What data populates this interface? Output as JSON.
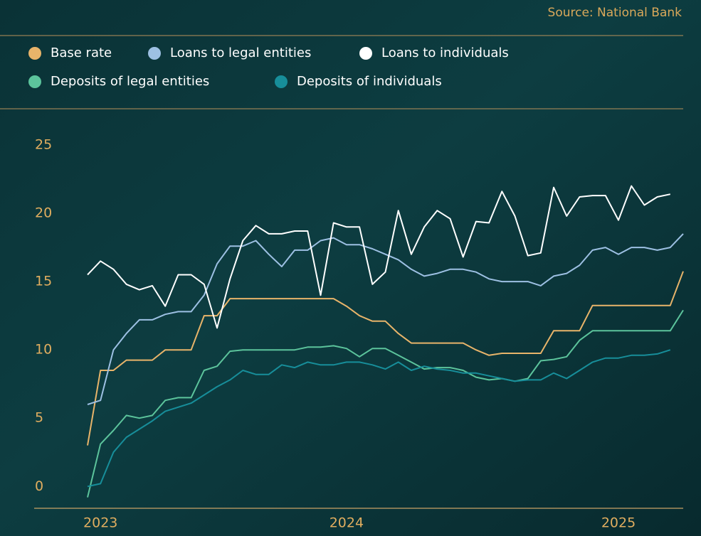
{
  "chart_data": {
    "type": "line",
    "source": "Source: National Bank",
    "categories": [
      null,
      "2023",
      null,
      null,
      null,
      null,
      null,
      null,
      null,
      null,
      null,
      null,
      null,
      null,
      null,
      null,
      null,
      null,
      null,
      null,
      "2024",
      null,
      null,
      null,
      null,
      null,
      null,
      null,
      null,
      null,
      null,
      null,
      null,
      null,
      null,
      null,
      null,
      null,
      null,
      null,
      null,
      "2025",
      null,
      null,
      null,
      null,
      null
    ],
    "ylim": [
      -1.6,
      25
    ],
    "yticks": [
      0,
      5,
      10,
      15,
      20,
      25
    ],
    "series": [
      {
        "name": "Base rate",
        "color": "#e8b46a",
        "values": [
          3.0,
          8.5,
          8.5,
          9.25,
          9.25,
          9.25,
          10.0,
          10.0,
          10.0,
          12.5,
          12.5,
          13.75,
          13.75,
          13.75,
          13.75,
          13.75,
          13.75,
          13.75,
          13.75,
          13.75,
          13.2,
          12.5,
          12.1,
          12.1,
          11.2,
          10.5,
          10.5,
          10.5,
          10.5,
          10.5,
          10.0,
          9.6,
          9.75,
          9.75,
          9.75,
          9.75,
          11.4,
          11.4,
          11.4,
          13.25,
          13.25,
          13.25,
          13.25,
          13.25,
          13.25,
          13.25,
          15.75
        ]
      },
      {
        "name": "Loans to legal entities",
        "color": "#9dc0e3",
        "values": [
          6.0,
          6.3,
          10.0,
          11.2,
          12.2,
          12.2,
          12.6,
          12.8,
          12.8,
          14.0,
          16.3,
          17.6,
          17.6,
          18.0,
          17.0,
          16.1,
          17.3,
          17.3,
          18.0,
          18.2,
          17.7,
          17.7,
          17.4,
          17.0,
          16.6,
          15.9,
          15.4,
          15.6,
          15.9,
          15.9,
          15.7,
          15.2,
          15.0,
          15.0,
          15.0,
          14.7,
          15.4,
          15.6,
          16.2,
          17.3,
          17.5,
          17.0,
          17.5,
          17.5,
          17.3,
          17.5,
          18.5
        ]
      },
      {
        "name": "Loans to individuals",
        "color": "#ffffff",
        "values": [
          15.5,
          16.5,
          15.9,
          14.8,
          14.4,
          14.7,
          13.2,
          15.5,
          15.5,
          14.8,
          11.6,
          15.2,
          18.0,
          19.1,
          18.5,
          18.5,
          18.7,
          18.7,
          14.0,
          19.3,
          19.0,
          19.0,
          14.8,
          15.7,
          20.2,
          17.0,
          19.0,
          20.2,
          19.6,
          16.8,
          19.4,
          19.3,
          21.6,
          19.8,
          16.9,
          17.1,
          21.9,
          19.8,
          21.2,
          21.3,
          21.3,
          19.5,
          22.0,
          20.6,
          21.2,
          21.4,
          null
        ]
      },
      {
        "name": "Deposits of legal entities",
        "color": "#5cc49c",
        "values": [
          -0.8,
          3.1,
          4.1,
          5.2,
          5.0,
          5.2,
          6.3,
          6.5,
          6.5,
          8.5,
          8.8,
          9.9,
          10.0,
          10.0,
          10.0,
          10.0,
          10.0,
          10.2,
          10.2,
          10.3,
          10.1,
          9.5,
          10.1,
          10.1,
          9.6,
          9.1,
          8.6,
          8.7,
          8.7,
          8.5,
          8.0,
          7.8,
          7.9,
          7.7,
          7.9,
          9.2,
          9.3,
          9.5,
          10.7,
          11.4,
          11.4,
          11.4,
          11.4,
          11.4,
          11.4,
          11.4,
          12.9
        ]
      },
      {
        "name": "Deposits of individuals",
        "color": "#178e9a",
        "values": [
          0.0,
          0.2,
          2.5,
          3.6,
          4.2,
          4.8,
          5.5,
          5.8,
          6.1,
          6.7,
          7.3,
          7.8,
          8.5,
          8.2,
          8.2,
          8.9,
          8.7,
          9.1,
          8.9,
          8.9,
          9.1,
          9.1,
          8.9,
          8.6,
          9.1,
          8.5,
          8.8,
          8.6,
          8.5,
          8.3,
          8.3,
          8.1,
          7.9,
          7.7,
          7.8,
          7.8,
          8.3,
          7.9,
          8.5,
          9.1,
          9.4,
          9.4,
          9.6,
          9.6,
          9.7,
          10.0,
          null
        ]
      }
    ]
  }
}
